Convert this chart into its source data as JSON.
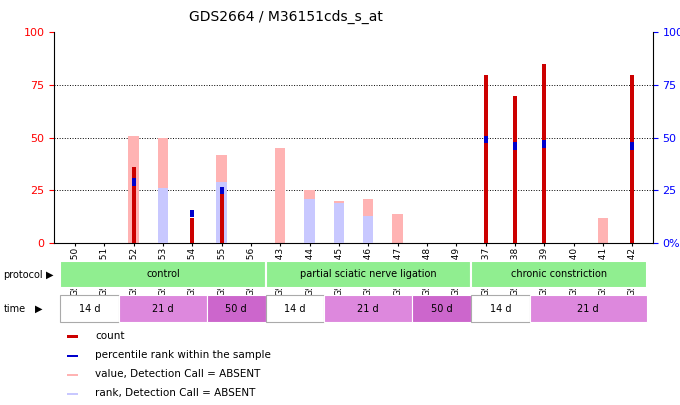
{
  "title": "GDS2664 / M36151cds_s_at",
  "samples": [
    "GSM50750",
    "GSM50751",
    "GSM50752",
    "GSM50753",
    "GSM50754",
    "GSM50755",
    "GSM50756",
    "GSM50743",
    "GSM50744",
    "GSM50745",
    "GSM50746",
    "GSM50747",
    "GSM50748",
    "GSM50749",
    "GSM50737",
    "GSM50738",
    "GSM50739",
    "GSM50740",
    "GSM50741",
    "GSM50742"
  ],
  "count_values": [
    0,
    0,
    36,
    0,
    12,
    26,
    0,
    0,
    0,
    0,
    0,
    0,
    0,
    0,
    80,
    70,
    85,
    0,
    0,
    80
  ],
  "rank_values": [
    0,
    0,
    29,
    0,
    14,
    25,
    0,
    0,
    0,
    0,
    0,
    0,
    0,
    0,
    49,
    46,
    47,
    0,
    0,
    46
  ],
  "absent_value_values": [
    0,
    0,
    51,
    50,
    0,
    42,
    0,
    45,
    25,
    20,
    21,
    14,
    0,
    0,
    0,
    0,
    0,
    0,
    12,
    0
  ],
  "absent_rank_values": [
    0,
    0,
    0,
    26,
    0,
    29,
    0,
    0,
    21,
    19,
    13,
    0,
    0,
    0,
    0,
    0,
    0,
    0,
    0,
    0
  ],
  "protocol_groups": [
    {
      "label": "control",
      "start": 0,
      "end": 7
    },
    {
      "label": "partial sciatic nerve ligation",
      "start": 7,
      "end": 14
    },
    {
      "label": "chronic constriction",
      "start": 14,
      "end": 20
    }
  ],
  "time_groups": [
    {
      "label": "14 d",
      "start": 0,
      "end": 2,
      "color": "#ffffff"
    },
    {
      "label": "21 d",
      "start": 2,
      "end": 5,
      "color": "#dd88dd"
    },
    {
      "label": "50 d",
      "start": 5,
      "end": 7,
      "color": "#cc66cc"
    },
    {
      "label": "14 d",
      "start": 7,
      "end": 9,
      "color": "#ffffff"
    },
    {
      "label": "21 d",
      "start": 9,
      "end": 12,
      "color": "#dd88dd"
    },
    {
      "label": "50 d",
      "start": 12,
      "end": 14,
      "color": "#cc66cc"
    },
    {
      "label": "14 d",
      "start": 14,
      "end": 16,
      "color": "#ffffff"
    },
    {
      "label": "21 d",
      "start": 16,
      "end": 20,
      "color": "#dd88dd"
    }
  ],
  "ylim": [
    0,
    100
  ],
  "count_color": "#cc0000",
  "rank_color": "#0000cc",
  "absent_value_color": "#ffb3b3",
  "absent_rank_color": "#c8c8ff",
  "protocol_row_color": "#90ee90",
  "title_fontsize": 10,
  "tick_fontsize": 6.5,
  "legend_fontsize": 7.5
}
